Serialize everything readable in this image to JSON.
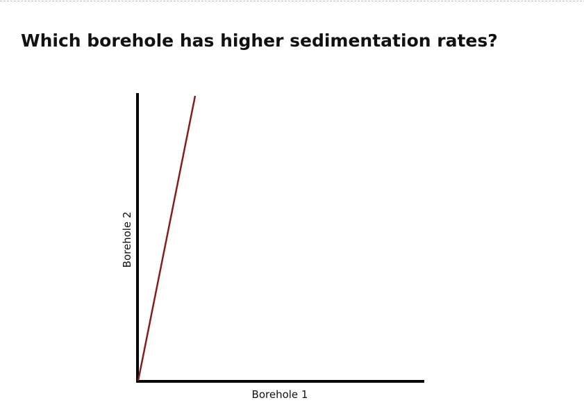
{
  "title": "Which borehole has higher sedimentation rates?",
  "figure": {
    "x_label": "Borehole 1",
    "y_label": "Borehole 2"
  }
}
